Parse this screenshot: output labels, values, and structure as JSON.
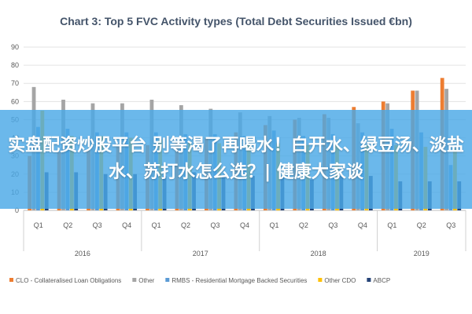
{
  "chart_data": {
    "type": "bar",
    "title": "Chart 3: Top 5 FVC Activity types (Total Debt Securities Issued €bn)",
    "xlabel": "",
    "ylabel": "",
    "ylim": [
      0,
      90
    ],
    "yticks": [
      0,
      10,
      20,
      30,
      40,
      50,
      60,
      70,
      80,
      90
    ],
    "grid": true,
    "legend_position": "bottom",
    "categories": [
      "Q1",
      "Q2",
      "Q3",
      "Q4",
      "Q1",
      "Q2",
      "Q3",
      "Q4",
      "Q1",
      "Q2",
      "Q3",
      "Q4",
      "Q1",
      "Q2",
      "Q3"
    ],
    "years": [
      {
        "label": "2016",
        "quarters": 4
      },
      {
        "label": "2017",
        "quarters": 4
      },
      {
        "label": "2018",
        "quarters": 4
      },
      {
        "label": "2019",
        "quarters": 3
      }
    ],
    "series": [
      {
        "name": "CLO - Collateralised Loan Obligations",
        "color": "#ed7d31",
        "values": [
          30,
          32,
          33,
          35,
          36,
          38,
          40,
          43,
          47,
          50,
          53,
          57,
          60,
          66,
          73
        ]
      },
      {
        "name": "Other",
        "color": "#a5a5a5",
        "values": [
          68,
          61,
          59,
          59,
          61,
          58,
          56,
          54,
          52,
          51,
          51,
          48,
          59,
          66,
          67
        ]
      },
      {
        "name": "RMBS - Residential Mortgage Backed Securities",
        "color": "#5b9bd5",
        "values": [
          46,
          45,
          43,
          43,
          43,
          42,
          42,
          41,
          44,
          41,
          42,
          43,
          45,
          43,
          25
        ]
      },
      {
        "name": "Other CDO",
        "color": "#ffc000",
        "values": [
          55,
          41,
          41,
          40,
          39,
          38,
          37,
          37,
          37,
          36,
          36,
          36,
          36,
          35,
          34
        ]
      },
      {
        "name": "ABCP",
        "color": "#264478",
        "values": [
          21,
          21,
          20,
          20,
          19,
          21,
          19,
          19,
          19,
          17,
          19,
          19,
          16,
          16,
          16
        ]
      }
    ]
  },
  "overlay": {
    "text": "实盘配资炒股平台 别等渴了再喝水！白开水、绿豆汤、淡盐水、苏打水怎么选？| 健康大家谈"
  }
}
